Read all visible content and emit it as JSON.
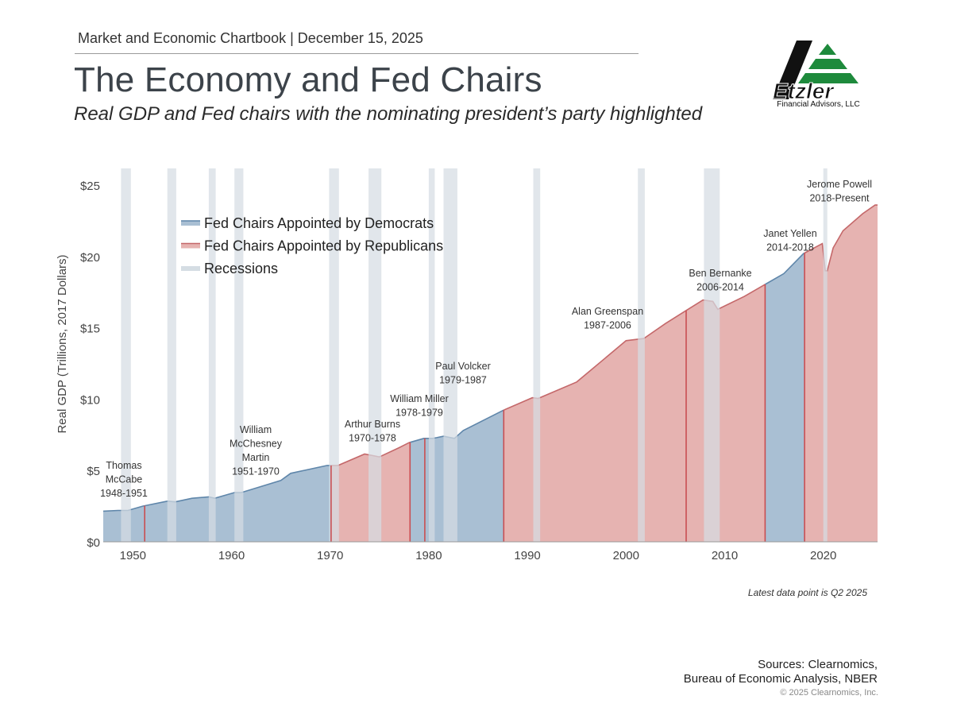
{
  "header": {
    "topline": "Market and Economic Chartbook | December 15, 2025",
    "title": "The Economy and Fed Chairs",
    "subtitle": "Real GDP and Fed chairs with the nominating president’s party highlighted"
  },
  "logo": {
    "name": "Etzler",
    "subtitle": "Financial Advisors, LLC",
    "colors": {
      "black": "#111111",
      "green": "#1e8a3c"
    }
  },
  "footer": {
    "latest": "Latest data point is Q2 2025",
    "sources_line1": "Sources: Clearnomics,",
    "sources_line2": "Bureau of Economic Analysis, NBER",
    "copyright": "© 2025 Clearnomics, Inc."
  },
  "chart_data": {
    "type": "area",
    "title": "",
    "xlabel": "",
    "ylabel": "Real GDP (Trillions, 2017 Dollars)",
    "xlim": [
      1947,
      2025.5
    ],
    "ylim": [
      0,
      25
    ],
    "x_ticks": [
      1950,
      1960,
      1970,
      1980,
      1990,
      2000,
      2010,
      2020
    ],
    "y_ticks": [
      0,
      5,
      10,
      15,
      20,
      25
    ],
    "y_tick_labels": [
      "$0",
      "$5",
      "$10",
      "$15",
      "$20",
      "$25"
    ],
    "grid": false,
    "legend_position": "top-left",
    "colors": {
      "democrat": "#a9bfd3",
      "democrat_line": "#5f86aa",
      "republican": "#e6b3b1",
      "republican_line": "#c4686a",
      "recession": "#d5dde3",
      "divider": "#c94e52"
    },
    "legend": [
      {
        "label": "Fed Chairs Appointed by Democrats",
        "key": "democrat"
      },
      {
        "label": "Fed Chairs Appointed by Republicans",
        "key": "republican"
      },
      {
        "label": "Recessions",
        "key": "recession"
      }
    ],
    "series": [
      {
        "name": "Real GDP",
        "x": [
          1947,
          1948.5,
          1949.5,
          1951,
          1953.5,
          1954.3,
          1956,
          1957.7,
          1958.3,
          1960.3,
          1961,
          1965,
          1966,
          1969.7,
          1970.8,
          1973.5,
          1975,
          1977,
          1978,
          1979.5,
          1980.4,
          1980.8,
          1981.5,
          1982.6,
          1983.5,
          1987.5,
          1990.5,
          1991.1,
          1995,
          2000,
          2001.8,
          2004,
          2007.8,
          2008.8,
          2009.3,
          2012,
          2014,
          2016,
          2018,
          2019.9,
          2020.2,
          2020.4,
          2021,
          2022,
          2024,
          2025.25
        ],
        "y": [
          2.15,
          2.2,
          2.2,
          2.5,
          2.85,
          2.8,
          3.05,
          3.15,
          3.05,
          3.45,
          3.45,
          4.3,
          4.8,
          5.35,
          5.35,
          6.15,
          5.95,
          6.6,
          6.95,
          7.25,
          7.25,
          7.3,
          7.4,
          7.25,
          7.8,
          9.2,
          10.1,
          10.05,
          11.2,
          14.1,
          14.25,
          15.3,
          16.95,
          16.85,
          16.3,
          17.2,
          18.0,
          18.8,
          20.2,
          20.9,
          19.0,
          19.0,
          20.6,
          21.8,
          23.0,
          23.6
        ]
      }
    ],
    "recessions": [
      [
        1948.8,
        1949.8
      ],
      [
        1953.5,
        1954.4
      ],
      [
        1957.7,
        1958.4
      ],
      [
        1960.3,
        1961.2
      ],
      [
        1969.9,
        1970.9
      ],
      [
        1973.9,
        1975.2
      ],
      [
        1980.0,
        1980.6
      ],
      [
        1981.5,
        1982.9
      ],
      [
        1990.6,
        1991.3
      ],
      [
        2001.2,
        2001.9
      ],
      [
        2007.9,
        2009.5
      ],
      [
        2020.0,
        2020.4
      ]
    ],
    "chairs": [
      {
        "name": "Thomas McCabe",
        "lines": [
          "Thomas",
          "McCabe",
          "1948-1951"
        ],
        "start": 1947,
        "end": 1951.2,
        "party": "democrat"
      },
      {
        "name": "William McChesney Martin",
        "lines": [
          "William",
          "McChesney",
          "Martin",
          "1951-1970"
        ],
        "start": 1951.2,
        "end": 1970.1,
        "party": "democrat"
      },
      {
        "name": "Arthur Burns",
        "lines": [
          "Arthur Burns",
          "1970-1978"
        ],
        "start": 1970.1,
        "end": 1978.1,
        "party": "republican"
      },
      {
        "name": "William Miller",
        "lines": [
          "William Miller",
          "1978-1979"
        ],
        "start": 1978.1,
        "end": 1979.6,
        "party": "democrat"
      },
      {
        "name": "Paul Volcker",
        "lines": [
          "Paul Volcker",
          "1979-1987"
        ],
        "start": 1979.6,
        "end": 1987.6,
        "party": "democrat"
      },
      {
        "name": "Alan Greenspan",
        "lines": [
          "Alan Greenspan",
          "1987-2006"
        ],
        "start": 1987.6,
        "end": 2006.1,
        "party": "republican"
      },
      {
        "name": "Ben Bernanke",
        "lines": [
          "Ben Bernanke",
          "2006-2014"
        ],
        "start": 2006.1,
        "end": 2014.1,
        "party": "republican"
      },
      {
        "name": "Janet Yellen",
        "lines": [
          "Janet Yellen",
          "2014-2018"
        ],
        "start": 2014.1,
        "end": 2018.1,
        "party": "democrat"
      },
      {
        "name": "Jerome Powell",
        "lines": [
          "Jerome Powell",
          "2018-Present"
        ],
        "start": 2018.1,
        "end": 2025.5,
        "party": "republican"
      }
    ]
  }
}
